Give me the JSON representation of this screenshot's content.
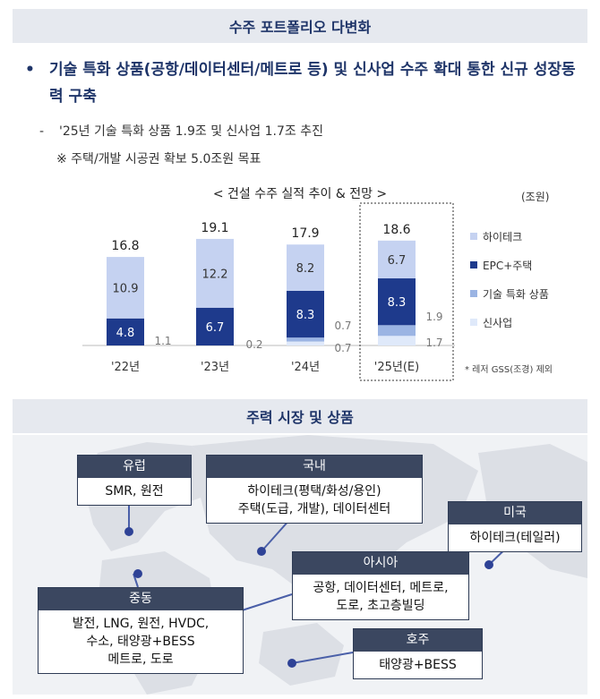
{
  "section1": {
    "title": "수주 포트폴리오 다변화",
    "bullet_mark": "•",
    "bullet": "기술 특화 상품(공항/데이터센터/메트로 등) 및 신사업 수주 확대 통한 신규 성장동력 구축",
    "sub_dash": "-",
    "sub1": "'25년 기술 특화 상품 1.9조 및 신사업 1.7조 추진",
    "sub2": "※ 주택/개발 시공권 확보 5.0조원 목표"
  },
  "chart_data": {
    "type": "bar",
    "title": "< 건설 수주 실적 추이 & 전망 >",
    "unit": "(조원)",
    "categories": [
      "'22년",
      "'23년",
      "'24년",
      "'25년(E)"
    ],
    "totals": [
      16.8,
      19.1,
      17.9,
      18.6
    ],
    "series": [
      {
        "name": "하이테크",
        "color": "#c5d2f1",
        "values": [
          10.9,
          12.2,
          8.2,
          6.7
        ]
      },
      {
        "name": "EPC+주택",
        "color": "#1e3a8c",
        "values": [
          4.8,
          6.7,
          8.3,
          8.3
        ]
      },
      {
        "name": "기술 특화 상품",
        "color": "#9bb4e3",
        "values": [
          null,
          null,
          0.7,
          1.9
        ]
      },
      {
        "name": "신사업",
        "color": "#dfe9fa",
        "values": [
          1.1,
          0.2,
          0.7,
          1.7
        ]
      }
    ],
    "stack_order": [
      "신사업",
      "기술 특화 상품",
      "EPC+주택",
      "하이테크"
    ],
    "highlight_category": "'25년(E)",
    "footnote": "* 레저 GSS(조경) 제외"
  },
  "section2": {
    "title": "주력 시장 및 상품"
  },
  "regions": [
    {
      "key": "europe",
      "title": "유럽",
      "lines": [
        "SMR, 원전"
      ]
    },
    {
      "key": "korea",
      "title": "국내",
      "lines": [
        "하이테크(평택/화성/용인)",
        "주택(도급, 개발), 데이터센터"
      ]
    },
    {
      "key": "usa",
      "title": "미국",
      "lines": [
        "하이테크(테일러)"
      ]
    },
    {
      "key": "asia",
      "title": "아시아",
      "lines": [
        "공항, 데이터센터, 메트로,",
        "도로, 초고층빌딩"
      ]
    },
    {
      "key": "mideast",
      "title": "중동",
      "lines": [
        "발전, LNG, 원전, HVDC,",
        "수소, 태양광+BESS",
        "메트로, 도로"
      ]
    },
    {
      "key": "australia",
      "title": "호주",
      "lines": [
        "태양광+BESS"
      ]
    }
  ],
  "colors": {
    "navy": "#1f3569",
    "box_header": "#3b4760",
    "connector": "#4a5fa8"
  }
}
